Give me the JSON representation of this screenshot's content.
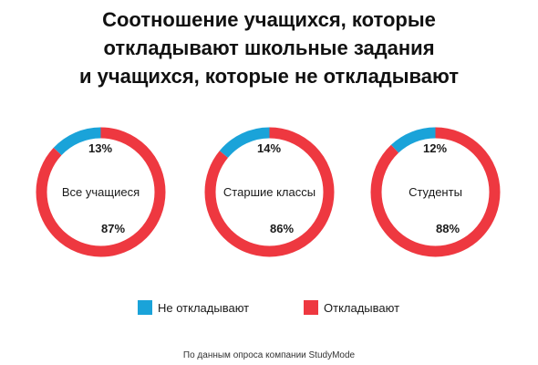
{
  "title_lines": [
    "Соотношение учащихся, которые",
    "откладывают школьные задания",
    "и учащихся, которые не откладывают"
  ],
  "colors": {
    "not_procrastinate": "#1aa3d9",
    "procrastinate": "#ee3840"
  },
  "legend": {
    "not_procrastinate": "Не откладывают",
    "procrastinate": "Откладывают"
  },
  "source": "По данным опроса компании StudyMode",
  "chart_data": {
    "type": "pie",
    "title": "Соотношение учащихся, которые откладывают школьные задания и учащихся, которые не откладывают",
    "series_names": [
      "Не откладывают",
      "Откладывают"
    ],
    "charts": [
      {
        "label": "Все учащиеся",
        "values": [
          13,
          87
        ],
        "labels": [
          "13%",
          "87%"
        ]
      },
      {
        "label": "Старшие классы",
        "values": [
          14,
          86
        ],
        "labels": [
          "14%",
          "86%"
        ]
      },
      {
        "label": "Студенты",
        "values": [
          12,
          88
        ],
        "labels": [
          "12%",
          "88%"
        ]
      }
    ]
  }
}
